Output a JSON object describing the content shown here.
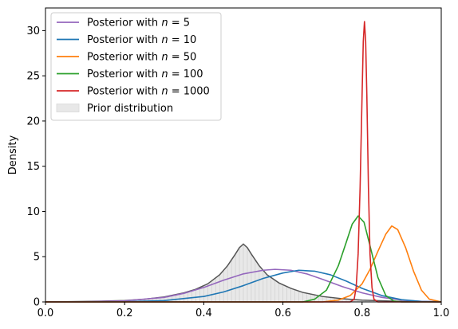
{
  "chart_data": {
    "type": "line",
    "title": "",
    "xlabel": "",
    "ylabel": "Density",
    "xlim": [
      0.0,
      1.0
    ],
    "ylim": [
      0,
      32.5
    ],
    "xticks": [
      "0.0",
      "0.2",
      "0.4",
      "0.6",
      "0.8",
      "1.0"
    ],
    "yticks": [
      "0",
      "5",
      "10",
      "15",
      "20",
      "25",
      "30"
    ],
    "grid": false,
    "legend_position": "top-left",
    "series": [
      {
        "name": "Posterior with n = 5",
        "legend_prefix": "Posterior with ",
        "legend_var": "n",
        "legend_suffix": " = 5",
        "color": "#9467bd",
        "x": [
          0.0,
          0.1,
          0.2,
          0.3,
          0.35,
          0.4,
          0.45,
          0.5,
          0.55,
          0.58,
          0.62,
          0.66,
          0.7,
          0.75,
          0.8,
          0.85,
          0.9,
          0.95,
          1.0
        ],
        "y": [
          0,
          0.02,
          0.12,
          0.5,
          0.95,
          1.6,
          2.4,
          3.1,
          3.5,
          3.6,
          3.5,
          3.1,
          2.5,
          1.7,
          1.0,
          0.5,
          0.2,
          0.06,
          0.02
        ]
      },
      {
        "name": "Posterior with n = 10",
        "legend_prefix": "Posterior with ",
        "legend_var": "n",
        "legend_suffix": " = 10",
        "color": "#1f77b4",
        "x": [
          0.0,
          0.2,
          0.3,
          0.4,
          0.45,
          0.5,
          0.55,
          0.6,
          0.64,
          0.68,
          0.72,
          0.76,
          0.8,
          0.85,
          0.9,
          0.95,
          1.0
        ],
        "y": [
          0,
          0.02,
          0.15,
          0.6,
          1.1,
          1.8,
          2.6,
          3.2,
          3.5,
          3.4,
          3.0,
          2.3,
          1.5,
          0.7,
          0.25,
          0.05,
          0.01
        ]
      },
      {
        "name": "Posterior with n = 50",
        "legend_prefix": "Posterior with ",
        "legend_var": "n",
        "legend_suffix": " = 50",
        "color": "#ff7f0e",
        "x": [
          0.0,
          0.7,
          0.74,
          0.77,
          0.8,
          0.82,
          0.84,
          0.86,
          0.875,
          0.89,
          0.91,
          0.93,
          0.95,
          0.97,
          1.0
        ],
        "y": [
          0,
          0.0,
          0.2,
          0.7,
          2.0,
          3.6,
          5.6,
          7.5,
          8.4,
          8.0,
          6.0,
          3.4,
          1.3,
          0.3,
          0.0
        ]
      },
      {
        "name": "Posterior with n = 100",
        "legend_prefix": "Posterior with ",
        "legend_var": "n",
        "legend_suffix": " = 100",
        "color": "#2ca02c",
        "x": [
          0.0,
          0.65,
          0.68,
          0.71,
          0.74,
          0.76,
          0.775,
          0.79,
          0.805,
          0.82,
          0.84,
          0.86,
          0.88,
          0.9,
          1.0
        ],
        "y": [
          0,
          0.0,
          0.3,
          1.3,
          4.0,
          6.6,
          8.6,
          9.5,
          8.8,
          6.2,
          2.7,
          0.7,
          0.1,
          0.0,
          0.0
        ]
      },
      {
        "name": "Posterior with n = 1000",
        "legend_prefix": "Posterior with ",
        "legend_var": "n",
        "legend_suffix": " = 1000",
        "color": "#d62728",
        "x": [
          0.0,
          0.77,
          0.78,
          0.785,
          0.79,
          0.795,
          0.8,
          0.803,
          0.806,
          0.809,
          0.812,
          0.816,
          0.82,
          0.825,
          0.83,
          0.84,
          1.0
        ],
        "y": [
          0,
          0.0,
          0.3,
          1.6,
          5.3,
          12.7,
          22.9,
          28.8,
          31.0,
          28.8,
          22.9,
          12.7,
          5.3,
          1.6,
          0.3,
          0.0,
          0.0
        ]
      }
    ],
    "prior": {
      "name": "Prior distribution",
      "fill_color": "#e8e8e8",
      "line_color": "#555555",
      "x": [
        0.0,
        0.1,
        0.2,
        0.25,
        0.3,
        0.35,
        0.38,
        0.41,
        0.44,
        0.46,
        0.48,
        0.49,
        0.5,
        0.51,
        0.52,
        0.54,
        0.56,
        0.59,
        0.62,
        0.65,
        0.7,
        0.75,
        0.8,
        0.9,
        1.0
      ],
      "y": [
        0,
        0.05,
        0.15,
        0.3,
        0.55,
        1.0,
        1.4,
        2.0,
        3.0,
        4.0,
        5.3,
        6.0,
        6.4,
        6.0,
        5.3,
        4.0,
        3.0,
        2.1,
        1.5,
        1.05,
        0.6,
        0.35,
        0.2,
        0.05,
        0.0
      ]
    }
  }
}
